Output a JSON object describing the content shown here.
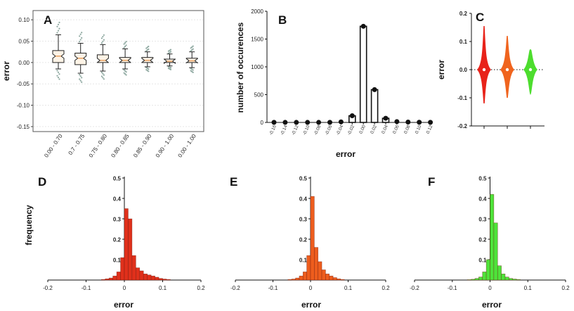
{
  "chart_data": [
    {
      "panel": "A",
      "type": "box",
      "xlabel": "",
      "ylabel": "error",
      "ylim": [
        -0.16,
        0.12
      ],
      "yticks": [
        "0.10",
        "0.05",
        "0.00",
        "-0.05",
        "-0.10",
        "-0.15"
      ],
      "categories": [
        "0.00 - 0.70",
        "0.7 - 0.75",
        "0.75 - 0.80",
        "0.80 - 0.85",
        "0.85 - 0.90",
        "0.90 - 1.00",
        "0.00 - 1.00"
      ],
      "boxes": [
        {
          "whisker_low": -0.015,
          "q1": 0.0,
          "median": 0.015,
          "q3": 0.028,
          "whisker_high": 0.065
        },
        {
          "whisker_low": -0.025,
          "q1": -0.005,
          "median": 0.01,
          "q3": 0.022,
          "whisker_high": 0.045
        },
        {
          "whisker_low": -0.02,
          "q1": 0.0,
          "median": 0.005,
          "q3": 0.018,
          "whisker_high": 0.042
        },
        {
          "whisker_low": -0.015,
          "q1": 0.0,
          "median": 0.005,
          "q3": 0.012,
          "whisker_high": 0.032
        },
        {
          "whisker_low": -0.01,
          "q1": 0.0,
          "median": 0.005,
          "q3": 0.012,
          "whisker_high": 0.025
        },
        {
          "whisker_low": -0.008,
          "q1": 0.0,
          "median": 0.003,
          "q3": 0.008,
          "whisker_high": 0.02
        },
        {
          "whisker_low": -0.012,
          "q1": 0.0,
          "median": 0.004,
          "q3": 0.01,
          "whisker_high": 0.025
        }
      ]
    },
    {
      "panel": "B",
      "type": "bar",
      "xlabel": "error",
      "ylabel": "number of occurences",
      "ylim": [
        0,
        2000
      ],
      "yticks": [
        "0",
        "500",
        "1000",
        "1500",
        "2000"
      ],
      "categories": [
        "-0.16",
        "-0.14",
        "-0.12",
        "-0.10",
        "-0.08",
        "-0.06",
        "-0.04",
        "-0.02",
        "0.00",
        "0.02",
        "0.04",
        "0.06",
        "0.08",
        "0.10",
        "0.12"
      ],
      "values": [
        2,
        1,
        1,
        1,
        1,
        2,
        10,
        120,
        1730,
        590,
        75,
        15,
        6,
        3,
        2
      ]
    },
    {
      "panel": "C",
      "type": "violin",
      "xlabel": "",
      "ylabel": "error",
      "ylim": [
        -0.2,
        0.2
      ],
      "yticks": [
        "0.2",
        "0.1",
        "0.0",
        "-0.1",
        "-0.2"
      ],
      "series": [
        {
          "name": "red",
          "color": "#e8231a",
          "min": -0.12,
          "max": 0.155,
          "median": 0.0
        },
        {
          "name": "orange",
          "color": "#f0641e",
          "min": -0.1,
          "max": 0.12,
          "median": 0.0
        },
        {
          "name": "green",
          "color": "#4ddd2e",
          "min": -0.085,
          "max": 0.07,
          "median": 0.0
        }
      ]
    },
    {
      "panel": "D",
      "type": "bar",
      "xlabel": "error",
      "ylabel": "frequency",
      "xlim": [
        -0.2,
        0.2
      ],
      "ylim": [
        0,
        0.5
      ],
      "xticks": [
        "-0.2",
        "-0.1",
        "0",
        "0.1",
        "0.2"
      ],
      "yticks": [
        "0.5",
        "0.4",
        "0.3",
        "0.2",
        "0.1"
      ],
      "color": "#e0301b",
      "bin_width": 0.01,
      "bin_starts": [
        -0.06,
        -0.05,
        -0.04,
        -0.03,
        -0.02,
        -0.01,
        0.0,
        0.01,
        0.02,
        0.03,
        0.04,
        0.05,
        0.06,
        0.07,
        0.08,
        0.09,
        0.1,
        0.11
      ],
      "values": [
        0.003,
        0.006,
        0.01,
        0.02,
        0.04,
        0.11,
        0.35,
        0.3,
        0.12,
        0.06,
        0.045,
        0.03,
        0.025,
        0.02,
        0.014,
        0.008,
        0.005,
        0.003
      ]
    },
    {
      "panel": "E",
      "type": "bar",
      "xlabel": "error",
      "ylabel": "",
      "xlim": [
        -0.2,
        0.2
      ],
      "ylim": [
        0,
        0.5
      ],
      "xticks": [
        "-0.2",
        "-0.1",
        "0",
        "0.1",
        "0.2"
      ],
      "yticks": [
        "0.5",
        "0.4",
        "0.3",
        "0.2",
        "0.1"
      ],
      "color": "#ee5d1d",
      "bin_width": 0.01,
      "bin_starts": [
        -0.06,
        -0.05,
        -0.04,
        -0.03,
        -0.02,
        -0.01,
        0.0,
        0.01,
        0.02,
        0.03,
        0.04,
        0.05,
        0.06,
        0.07,
        0.08
      ],
      "values": [
        0.003,
        0.005,
        0.01,
        0.02,
        0.04,
        0.12,
        0.41,
        0.16,
        0.09,
        0.05,
        0.03,
        0.02,
        0.012,
        0.006,
        0.003
      ]
    },
    {
      "panel": "F",
      "type": "bar",
      "xlabel": "error",
      "ylabel": "",
      "xlim": [
        -0.2,
        0.2
      ],
      "ylim": [
        0,
        0.5
      ],
      "xticks": [
        "-0.2",
        "-0.1",
        "0",
        "0.1",
        "0.2"
      ],
      "yticks": [
        "0.5",
        "0.4",
        "0.3",
        "0.2",
        "0.1"
      ],
      "color": "#4ee33a",
      "bin_width": 0.01,
      "bin_starts": [
        -0.06,
        -0.05,
        -0.04,
        -0.03,
        -0.02,
        -0.01,
        0.0,
        0.01,
        0.02,
        0.03,
        0.04,
        0.05,
        0.06,
        0.07
      ],
      "values": [
        0.002,
        0.004,
        0.008,
        0.015,
        0.04,
        0.1,
        0.42,
        0.28,
        0.07,
        0.03,
        0.015,
        0.008,
        0.005,
        0.003
      ]
    }
  ]
}
